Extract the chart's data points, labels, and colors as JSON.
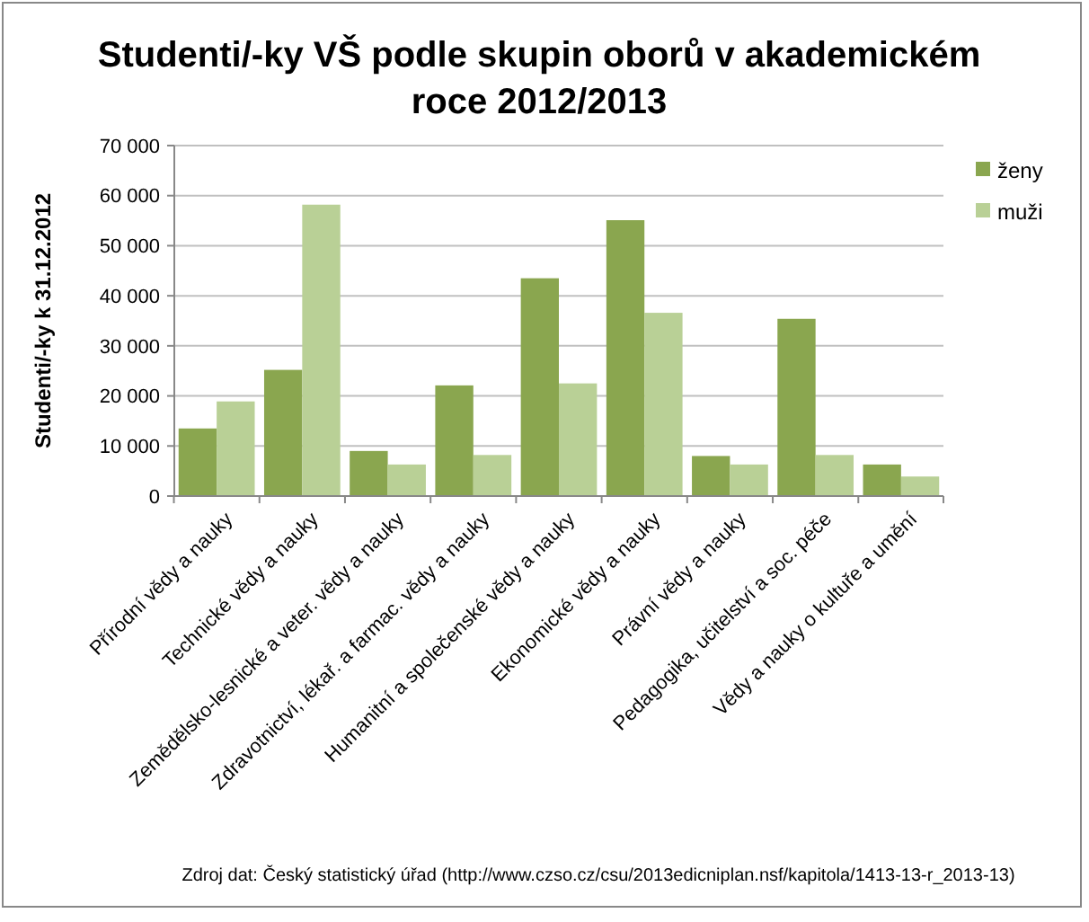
{
  "chart_data": {
    "type": "bar",
    "title": "Studenti/-ky VŠ podle skupin oborů v akademickém roce 2012/2013",
    "ylabel": "Studenti/-ky k 31.12.2012",
    "categories": [
      "Přírodní vědy a nauky",
      "Technické vědy a nauky",
      "Zemědělsko-lesnické a veter. vědy a nauky",
      "Zdravotnictví, lékař. a farmac. vědy a nauky",
      "Humanitní a společenské vědy a nauky",
      "Ekonomické vědy a nauky",
      "Právní vědy a nauky",
      "Pedagogika, učitelství a soc. péče",
      "Vědy a nauky o kultuře a umění"
    ],
    "series": [
      {
        "name": "ženy",
        "color": "#8aa64f",
        "values": [
          13500,
          25200,
          9000,
          22100,
          43500,
          55100,
          8000,
          35400,
          6300
        ]
      },
      {
        "name": "muži",
        "color": "#b9d096",
        "values": [
          18900,
          58200,
          6300,
          8200,
          22500,
          36600,
          6300,
          8200,
          3900
        ]
      }
    ],
    "ylim": [
      0,
      70000
    ],
    "yticks": [
      0,
      {
        "value": 10000,
        "label": "10 000"
      },
      {
        "value": 20000,
        "label": "20 000"
      },
      {
        "value": 30000,
        "label": "30 000"
      },
      {
        "value": 40000,
        "label": "40 000"
      },
      {
        "value": 50000,
        "label": "50 000"
      },
      {
        "value": 60000,
        "label": "60 000"
      },
      {
        "value": 70000,
        "label": "70 000"
      }
    ],
    "grid": "y",
    "legend": "right",
    "annotations": [
      "Zdroj dat: Český statistický úřad (http://www.czso.cz/csu/2013edicniplan.nsf/kapitola/1413-13-r_2013-13)"
    ]
  }
}
